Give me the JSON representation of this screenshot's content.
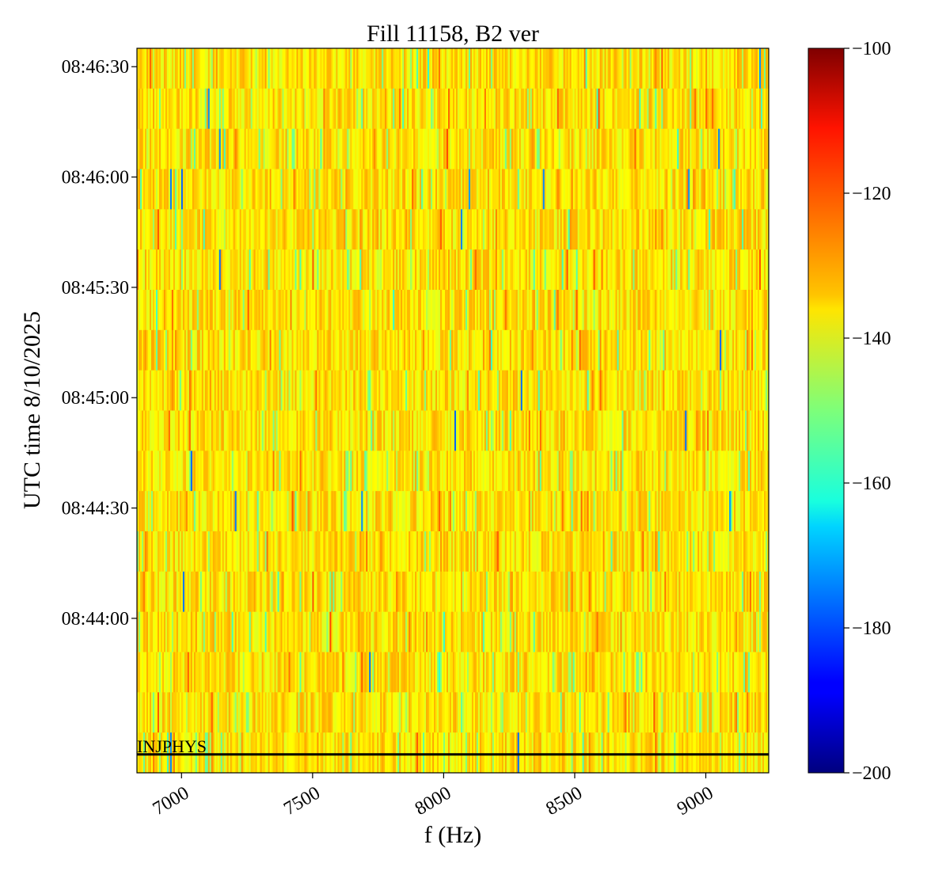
{
  "chart_data": {
    "type": "heatmap",
    "title": "Fill 11158, B2 ver",
    "xlabel": "f (Hz)",
    "ylabel": "UTC time 8/10/2025",
    "xlim": [
      6830,
      9240
    ],
    "x_ticks": [
      7000,
      7500,
      8000,
      8500,
      9000
    ],
    "x_tick_labels": [
      "7000",
      "7500",
      "8000",
      "8500",
      "9000"
    ],
    "ylim": [
      "08:43:18",
      "08:46:35"
    ],
    "y_ticks": [
      "08:44:00",
      "08:44:30",
      "08:45:00",
      "08:45:30",
      "08:46:00",
      "08:46:30"
    ],
    "y_tick_labels": [
      "08:44:00",
      "08:44:30",
      "08:45:00",
      "08:45:30",
      "08:46:00",
      "08:46:30"
    ],
    "time_rows": 18,
    "freq_columns": 400,
    "typical_value": -135,
    "typical_range": [
      -155,
      -125
    ],
    "colormap": "jet",
    "colorbar": {
      "vmin": -200,
      "vmax": -100,
      "ticks": [
        -100,
        -120,
        -140,
        -160,
        -180,
        -200
      ],
      "tick_labels": [
        "−100",
        "−120",
        "−140",
        "−160",
        "−180",
        "−200"
      ]
    },
    "annotation": {
      "text": "INJPHYS",
      "time": "08:43:23"
    },
    "grid": false
  }
}
